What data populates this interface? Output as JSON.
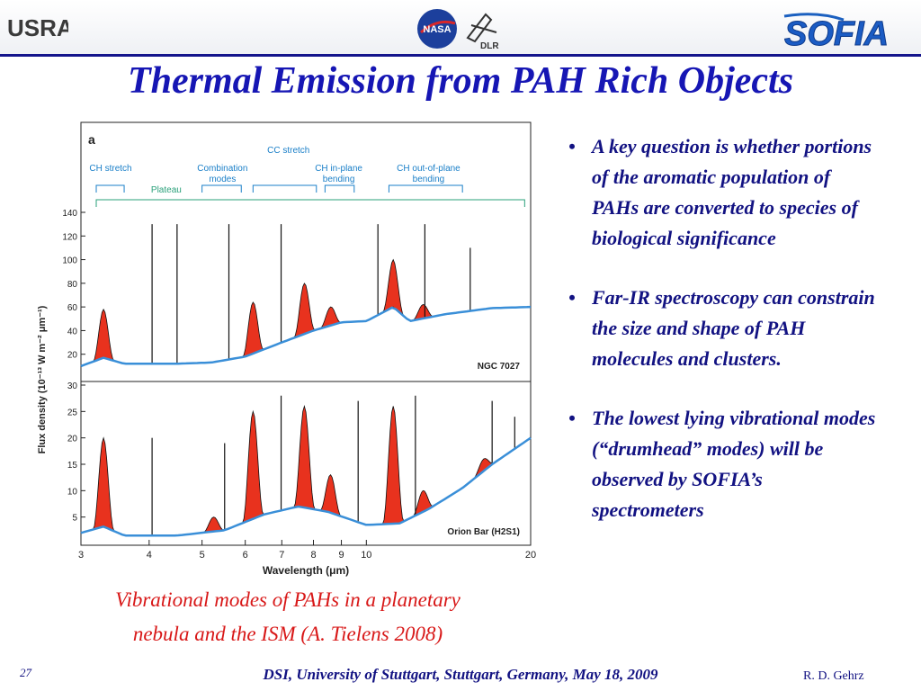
{
  "header": {
    "logo_left": "USRA",
    "logo_center_a": "NASA",
    "logo_center_b": "DLR",
    "logo_right": "SOFIA"
  },
  "title": "Thermal Emission from PAH Rich Objects",
  "chart_data": {
    "type": "line",
    "panel_letter": "a",
    "xlabel": "Wavelength (μm)",
    "ylabel": "Flux density (10⁻¹³ W m⁻² μm⁻¹)",
    "x_scale": "log",
    "xlim": [
      3,
      20
    ],
    "x_ticks": [
      3,
      4,
      5,
      6,
      7,
      8,
      9,
      10,
      20
    ],
    "band_annotations": [
      {
        "label": "CH stretch"
      },
      {
        "label": "Plateau"
      },
      {
        "label": "Combination modes"
      },
      {
        "label": "CC stretch"
      },
      {
        "label": "CH in-plane bending"
      },
      {
        "label": "CH out-of-plane bending"
      }
    ],
    "panels": [
      {
        "name": "NGC 7027",
        "ylim": [
          0,
          140
        ],
        "y_ticks": [
          20,
          40,
          60,
          80,
          100,
          120,
          140
        ],
        "continuum_x": [
          3.0,
          3.3,
          3.6,
          4.5,
          5.2,
          6.0,
          7.0,
          8.0,
          9.0,
          10.0,
          11.2,
          12.0,
          14.0,
          17.0,
          20.0
        ],
        "continuum_y": [
          10,
          17,
          12,
          12,
          13,
          18,
          30,
          40,
          47,
          48,
          60,
          48,
          54,
          59,
          60
        ],
        "emission_features": [
          {
            "x": 3.3,
            "y": 58
          },
          {
            "x": 6.2,
            "y": 64
          },
          {
            "x": 7.7,
            "y": 80
          },
          {
            "x": 8.6,
            "y": 60
          },
          {
            "x": 11.2,
            "y": 100
          },
          {
            "x": 12.7,
            "y": 62
          }
        ],
        "emission_lines": [
          {
            "x": 4.05,
            "y": 130
          },
          {
            "x": 4.5,
            "y": 130
          },
          {
            "x": 5.6,
            "y": 130
          },
          {
            "x": 6.98,
            "y": 130
          },
          {
            "x": 10.5,
            "y": 130
          },
          {
            "x": 12.8,
            "y": 130
          },
          {
            "x": 15.5,
            "y": 110
          }
        ]
      },
      {
        "name": "Orion Bar (H2S1)",
        "ylim": [
          0,
          30
        ],
        "y_ticks": [
          5,
          10,
          15,
          20,
          25,
          30
        ],
        "continuum_x": [
          3.0,
          3.3,
          3.6,
          4.5,
          5.5,
          6.5,
          7.5,
          8.5,
          10.0,
          11.5,
          13.0,
          15.0,
          17.0,
          20.0
        ],
        "continuum_y": [
          2,
          3.2,
          1.5,
          1.5,
          2.5,
          5.5,
          7,
          6,
          3.5,
          3.8,
          6.5,
          10.5,
          15,
          20
        ],
        "emission_features": [
          {
            "x": 3.3,
            "y": 20
          },
          {
            "x": 5.25,
            "y": 5
          },
          {
            "x": 6.2,
            "y": 25
          },
          {
            "x": 7.7,
            "y": 26
          },
          {
            "x": 8.6,
            "y": 13
          },
          {
            "x": 11.2,
            "y": 26
          },
          {
            "x": 12.7,
            "y": 10
          },
          {
            "x": 16.4,
            "y": 16
          }
        ],
        "emission_lines": [
          {
            "x": 4.05,
            "y": 20
          },
          {
            "x": 5.5,
            "y": 19
          },
          {
            "x": 6.98,
            "y": 28
          },
          {
            "x": 9.66,
            "y": 27
          },
          {
            "x": 12.3,
            "y": 28
          },
          {
            "x": 17.0,
            "y": 27
          },
          {
            "x": 18.7,
            "y": 24
          }
        ]
      }
    ]
  },
  "caption": {
    "line1": "Vibrational modes of PAHs in a planetary",
    "line2": "nebula and the ISM (A. Tielens 2008)"
  },
  "bullets": [
    {
      "dot": "•",
      "text": "A key question is whether portions of the aromatic population of PAHs are converted to species of biological significance"
    },
    {
      "dot": "•",
      "text": "Far-IR spectroscopy can constrain the size and shape of PAH molecules and clusters."
    },
    {
      "dot": "•",
      "text": "The lowest lying vibrational modes (“drumhead” modes) will be observed by SOFIA’s spectrometers"
    }
  ],
  "footer": {
    "page_number": "27",
    "conference": "DSI, University of Stuttgart, Stuttgart, Germany, May 18, 2009",
    "author": "R.  D. Gehrz"
  },
  "colors": {
    "title": "#1616b4",
    "bullet_text": "#121282",
    "caption": "#d81818",
    "emission_fill": "#e8321e",
    "continuum": "#3a8fd8",
    "annotation": "#1a7fc8",
    "plateau": "#2aa07a"
  }
}
